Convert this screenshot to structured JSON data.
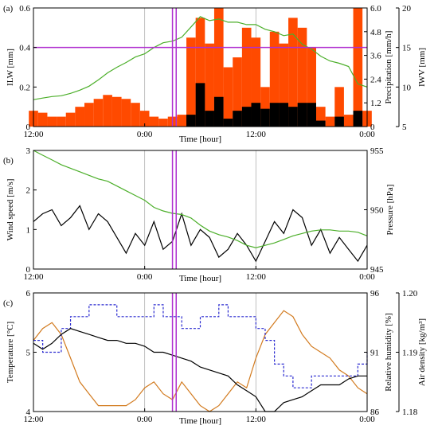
{
  "chart_data": [
    {
      "panel_label": "(a)",
      "type": "area",
      "xlabel": "Time [hour]",
      "xticks": [
        "12:00",
        "0:00",
        "12:00",
        "0:00"
      ],
      "axes": {
        "left": {
          "label": "ILW [mm]",
          "ylim": [
            0,
            0.6
          ],
          "ticks": [
            "0",
            "0.2",
            "0.4",
            "0.6"
          ],
          "color": "#e86a1a"
        },
        "right1": {
          "label": "Precipitation [mm/h]",
          "ylim": [
            0,
            6
          ],
          "ticks": [
            "0",
            "1.2",
            "2.4",
            "3.6",
            "4.8",
            "6.0"
          ],
          "color": "#000000"
        },
        "right2": {
          "label": "IWV [mm]",
          "ylim": [
            5,
            20
          ],
          "ticks": [
            "5",
            "10",
            "15",
            "20"
          ],
          "color": "#4caf2a"
        }
      },
      "x_hours": [
        0,
        1,
        2,
        3,
        4,
        5,
        6,
        7,
        8,
        9,
        10,
        11,
        12,
        13,
        14,
        15,
        16,
        17,
        18,
        19,
        20,
        21,
        22,
        23,
        24,
        25,
        26,
        27,
        28,
        29,
        30,
        31,
        32,
        33,
        34,
        35,
        36
      ],
      "series": [
        {
          "name": "ILW",
          "axis": "left",
          "color": "#ff4a00",
          "values": [
            0.08,
            0.07,
            0.05,
            0.05,
            0.07,
            0.1,
            0.12,
            0.14,
            0.16,
            0.15,
            0.14,
            0.12,
            0.08,
            0.05,
            0.04,
            0.05,
            0.06,
            0.45,
            0.55,
            0.42,
            0.6,
            0.3,
            0.35,
            0.5,
            0.45,
            0.2,
            0.48,
            0.42,
            0.55,
            0.5,
            0.4,
            0.1,
            0.05,
            0.2,
            0.06,
            0.6,
            0.08
          ]
        },
        {
          "name": "Precipitation",
          "axis": "right1",
          "color": "#000000",
          "values": [
            0,
            0,
            0,
            0,
            0,
            0,
            0,
            0,
            0,
            0,
            0,
            0,
            0,
            0,
            0,
            0,
            0,
            0.6,
            2.2,
            0.8,
            1.5,
            0.4,
            0.8,
            1.0,
            1.2,
            0.9,
            1.2,
            1.2,
            1.0,
            1.2,
            1.2,
            0.3,
            0,
            0.5,
            0,
            0.8,
            0
          ]
        },
        {
          "name": "IWV",
          "axis": "right2",
          "color": "#4caf2a",
          "values": [
            8.4,
            8.6,
            8.8,
            8.9,
            9.2,
            9.6,
            10.1,
            10.9,
            11.8,
            12.5,
            13.1,
            13.8,
            14.2,
            15.0,
            15.6,
            15.8,
            16.3,
            17.6,
            18.9,
            18.4,
            18.6,
            18.2,
            18.2,
            17.9,
            17.9,
            17.3,
            17.0,
            16.5,
            16.7,
            15.4,
            14.8,
            13.9,
            13.3,
            13.0,
            12.6,
            10.4,
            10.0
          ]
        }
      ],
      "hlines": [
        {
          "axis": "left",
          "y": 0.4,
          "color": "#b030d0"
        }
      ],
      "vlines_hours": [
        15.0,
        15.4
      ],
      "vline_color": "#b030d0"
    },
    {
      "panel_label": "(b)",
      "type": "line",
      "xlabel": "Time [hour]",
      "xticks": [
        "12:00",
        "0:00",
        "12:00",
        "0:00"
      ],
      "axes": {
        "left": {
          "label": "Wind speed [m/s]",
          "ylim": [
            0,
            3
          ],
          "ticks": [
            "0",
            "1",
            "2",
            "3"
          ],
          "color": "#000000"
        },
        "right": {
          "label": "Pressure [hPa]",
          "ylim": [
            945,
            955
          ],
          "ticks": [
            "945",
            "950",
            "955"
          ],
          "color": "#4caf2a"
        }
      },
      "x_hours": [
        0,
        1,
        2,
        3,
        4,
        5,
        6,
        7,
        8,
        9,
        10,
        11,
        12,
        13,
        14,
        15,
        16,
        17,
        18,
        19,
        20,
        21,
        22,
        23,
        24,
        25,
        26,
        27,
        28,
        29,
        30,
        31,
        32,
        33,
        34,
        35,
        36
      ],
      "series": [
        {
          "name": "Wind speed",
          "axis": "left",
          "color": "#000000",
          "values": [
            1.2,
            1.4,
            1.5,
            1.1,
            1.3,
            1.6,
            1.0,
            1.4,
            1.2,
            0.8,
            0.4,
            0.9,
            0.6,
            1.2,
            0.5,
            0.7,
            1.4,
            0.6,
            1.0,
            0.8,
            0.3,
            0.5,
            0.9,
            0.6,
            0.2,
            0.7,
            1.2,
            0.9,
            1.5,
            1.3,
            0.6,
            1.0,
            0.4,
            0.8,
            0.5,
            0.2,
            0.6
          ]
        },
        {
          "name": "Pressure",
          "axis": "right",
          "color": "#4caf2a",
          "values": [
            955.0,
            954.6,
            954.2,
            953.8,
            953.5,
            953.2,
            952.9,
            952.6,
            952.4,
            952.0,
            951.6,
            951.2,
            950.8,
            950.2,
            949.9,
            949.7,
            949.6,
            949.3,
            948.7,
            948.2,
            947.9,
            947.7,
            947.4,
            947.0,
            946.8,
            947.0,
            947.2,
            947.5,
            947.8,
            948.0,
            948.2,
            948.3,
            948.3,
            948.2,
            948.2,
            948.1,
            947.8
          ]
        }
      ],
      "vlines_hours": [
        15.0,
        15.4
      ],
      "vline_color": "#b030d0"
    },
    {
      "panel_label": "(c)",
      "type": "line",
      "xlabel": "Time [hour]",
      "xticks": [
        "12:00",
        "0:00",
        "12:00",
        "0:00"
      ],
      "axes": {
        "left": {
          "label": "Temperature [°C]",
          "ylim": [
            4,
            6
          ],
          "ticks": [
            "4",
            "5",
            "6"
          ],
          "color": "#d27a1e"
        },
        "right1": {
          "label": "Relative humidity [%]",
          "ylim": [
            86,
            96
          ],
          "ticks": [
            "86",
            "91",
            "96"
          ],
          "color": "#2a2ad0"
        },
        "right2": {
          "label": "Air density [kg/m³]",
          "ylim": [
            1.18,
            1.2
          ],
          "ticks": [
            "1.18",
            "1.19",
            "1.20"
          ],
          "color": "#000000"
        }
      },
      "x_hours": [
        0,
        1,
        2,
        3,
        4,
        5,
        6,
        7,
        8,
        9,
        10,
        11,
        12,
        13,
        14,
        15,
        16,
        17,
        18,
        19,
        20,
        21,
        22,
        23,
        24,
        25,
        26,
        27,
        28,
        29,
        30,
        31,
        32,
        33,
        34,
        35,
        36
      ],
      "series": [
        {
          "name": "Temperature",
          "axis": "left",
          "color": "#d27a1e",
          "values": [
            5.2,
            5.4,
            5.5,
            5.3,
            4.9,
            4.5,
            4.3,
            4.1,
            4.1,
            4.1,
            4.1,
            4.2,
            4.4,
            4.5,
            4.3,
            4.2,
            4.5,
            4.3,
            4.1,
            4.0,
            4.1,
            4.3,
            4.5,
            4.4,
            4.9,
            5.3,
            5.5,
            5.7,
            5.6,
            5.3,
            5.1,
            5.0,
            4.9,
            4.7,
            4.6,
            4.4,
            4.3
          ]
        },
        {
          "name": "Relative humidity",
          "axis": "right1",
          "color": "#2a2ad0",
          "values": [
            92,
            91,
            91,
            93,
            94,
            94,
            95,
            95,
            95,
            94,
            94,
            94,
            94,
            95,
            94,
            94,
            93,
            93,
            94,
            94,
            95,
            94,
            94,
            94,
            93,
            92,
            90,
            89,
            88,
            88,
            89,
            89,
            89,
            89,
            89,
            90,
            91
          ]
        },
        {
          "name": "Air density",
          "axis": "right2",
          "color": "#000000",
          "values": [
            1.1915,
            1.1905,
            1.1915,
            1.193,
            1.194,
            1.1935,
            1.193,
            1.1925,
            1.192,
            1.192,
            1.1915,
            1.1915,
            1.191,
            1.19,
            1.19,
            1.1895,
            1.189,
            1.1885,
            1.1875,
            1.187,
            1.1865,
            1.186,
            1.1845,
            1.1835,
            1.1825,
            1.18,
            1.18,
            1.1815,
            1.182,
            1.1825,
            1.1835,
            1.1845,
            1.1845,
            1.1845,
            1.1855,
            1.186,
            1.186
          ]
        }
      ],
      "vlines_hours": [
        15.0,
        15.4
      ],
      "vline_color": "#b030d0"
    }
  ]
}
